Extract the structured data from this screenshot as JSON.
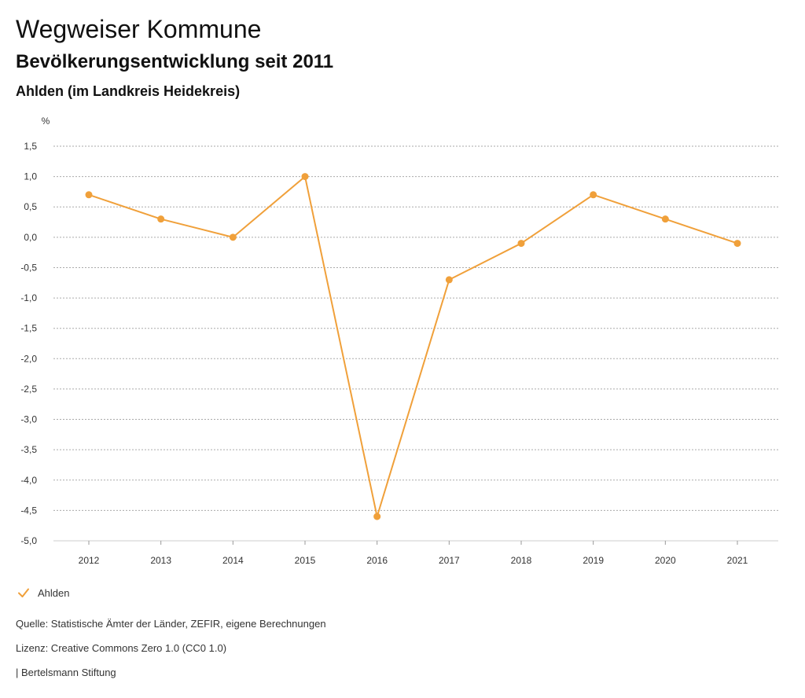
{
  "header": {
    "title": "Wegweiser Kommune",
    "subtitle": "Bevölkerungsentwicklung seit 2011",
    "region": "Ahlden (im Landkreis Heidekreis)"
  },
  "colors": {
    "series": "#f0a03a",
    "grid": "#aaaaaa",
    "text": "#111111"
  },
  "chart_data": {
    "type": "line",
    "unit_label": "%",
    "x": [
      "2012",
      "2013",
      "2014",
      "2015",
      "2016",
      "2017",
      "2018",
      "2019",
      "2020",
      "2021"
    ],
    "series": [
      {
        "name": "Ahlden",
        "values": [
          0.7,
          0.3,
          0.0,
          1.0,
          -4.6,
          -0.7,
          -0.1,
          0.7,
          0.3,
          -0.1
        ]
      }
    ],
    "ylim": [
      -5.0,
      1.5
    ],
    "yticks": [
      1.5,
      1.0,
      0.5,
      0.0,
      -0.5,
      -1.0,
      -1.5,
      -2.0,
      -2.5,
      -3.0,
      -3.5,
      -4.0,
      -4.5,
      -5.0
    ],
    "ytick_labels": [
      "1,5",
      "1,0",
      "0,5",
      "0,0",
      "-0,5",
      "-1,0",
      "-1,5",
      "-2,0",
      "-2,5",
      "-3,0",
      "-3,5",
      "-4,0",
      "-4,5",
      "-5,0"
    ],
    "grid": true,
    "legend_placement": "bottom-left"
  },
  "legend": {
    "label": "Ahlden",
    "icon": "check-icon"
  },
  "footer": {
    "source": "Quelle: Statistische Ämter der Länder, ZEFIR, eigene Berechnungen",
    "license": "Lizenz: Creative Commons Zero 1.0 (CC0 1.0)",
    "publisher": "| Bertelsmann Stiftung"
  }
}
